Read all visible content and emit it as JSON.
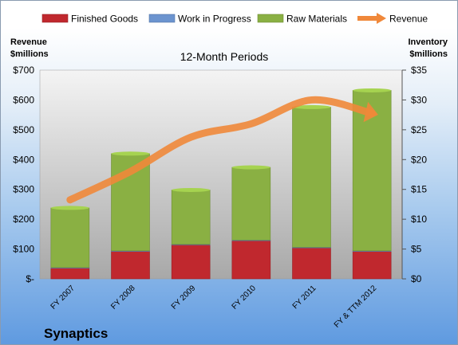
{
  "chart_data": {
    "type": "bar",
    "stacked": true,
    "title": "12-Month Periods",
    "company": "Synaptics",
    "left_axis_label": [
      "Revenue",
      "$millions"
    ],
    "right_axis_label": [
      "Inventory",
      "$millions"
    ],
    "categories": [
      "FY 2007",
      "FY 2008",
      "FY 2009",
      "FY 2010",
      "FY 2011",
      "FY & TTM 2012"
    ],
    "series": [
      {
        "name": "Finished Goods",
        "color": "#c0282e",
        "values": [
          1.8,
          4.6,
          5.7,
          6.4,
          5.2,
          4.6
        ],
        "axis": "right"
      },
      {
        "name": "Work in Progress",
        "color": "#6c94cf",
        "values": [
          0.1,
          0.1,
          0.1,
          0.1,
          0.1,
          0.1
        ],
        "axis": "right"
      },
      {
        "name": "Raw Materials",
        "color": "#8ab043",
        "values": [
          10.0,
          16.3,
          9.1,
          12.2,
          23.5,
          26.9
        ],
        "axis": "right"
      }
    ],
    "line_series": {
      "name": "Revenue",
      "color": "#f0883a",
      "values": [
        265,
        360,
        475,
        520,
        600,
        555
      ],
      "axis": "left"
    },
    "left_axis": {
      "ylim": [
        0,
        700
      ],
      "ticks": [
        "$-",
        "$100",
        "$200",
        "$300",
        "$400",
        "$500",
        "$600",
        "$700"
      ]
    },
    "right_axis": {
      "ylim": [
        0,
        35
      ],
      "ticks": [
        "$0",
        "$5",
        "$10",
        "$15",
        "$20",
        "$25",
        "$30",
        "$35"
      ]
    },
    "legend_position": "top",
    "grid": false
  }
}
